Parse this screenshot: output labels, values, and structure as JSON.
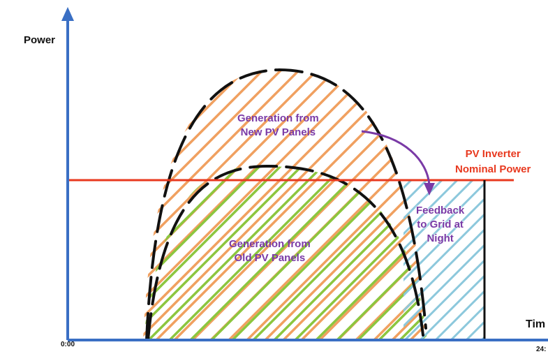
{
  "axes": {
    "y_label": "Power",
    "x_label": "Tim",
    "x_start_tick": "0:00",
    "x_end_tick": "24:"
  },
  "regions": {
    "new_panels": [
      "Generation from",
      "New PV Panels"
    ],
    "old_panels": [
      "Generation from",
      "Old PV Panels"
    ],
    "feedback": [
      "Feedback",
      "to Grid at",
      "Night"
    ]
  },
  "nominal_power": [
    "PV Inverter",
    "Nominal Power"
  ],
  "colors": {
    "axis": "#3a6fc4",
    "nominal_line": "#e8391f",
    "new_hatch": "#f0a060",
    "old_hatch": "#8cc63f",
    "feedback_hatch": "#8cc8dc",
    "label_purple": "#7a3aa6",
    "outline": "#111111"
  }
}
